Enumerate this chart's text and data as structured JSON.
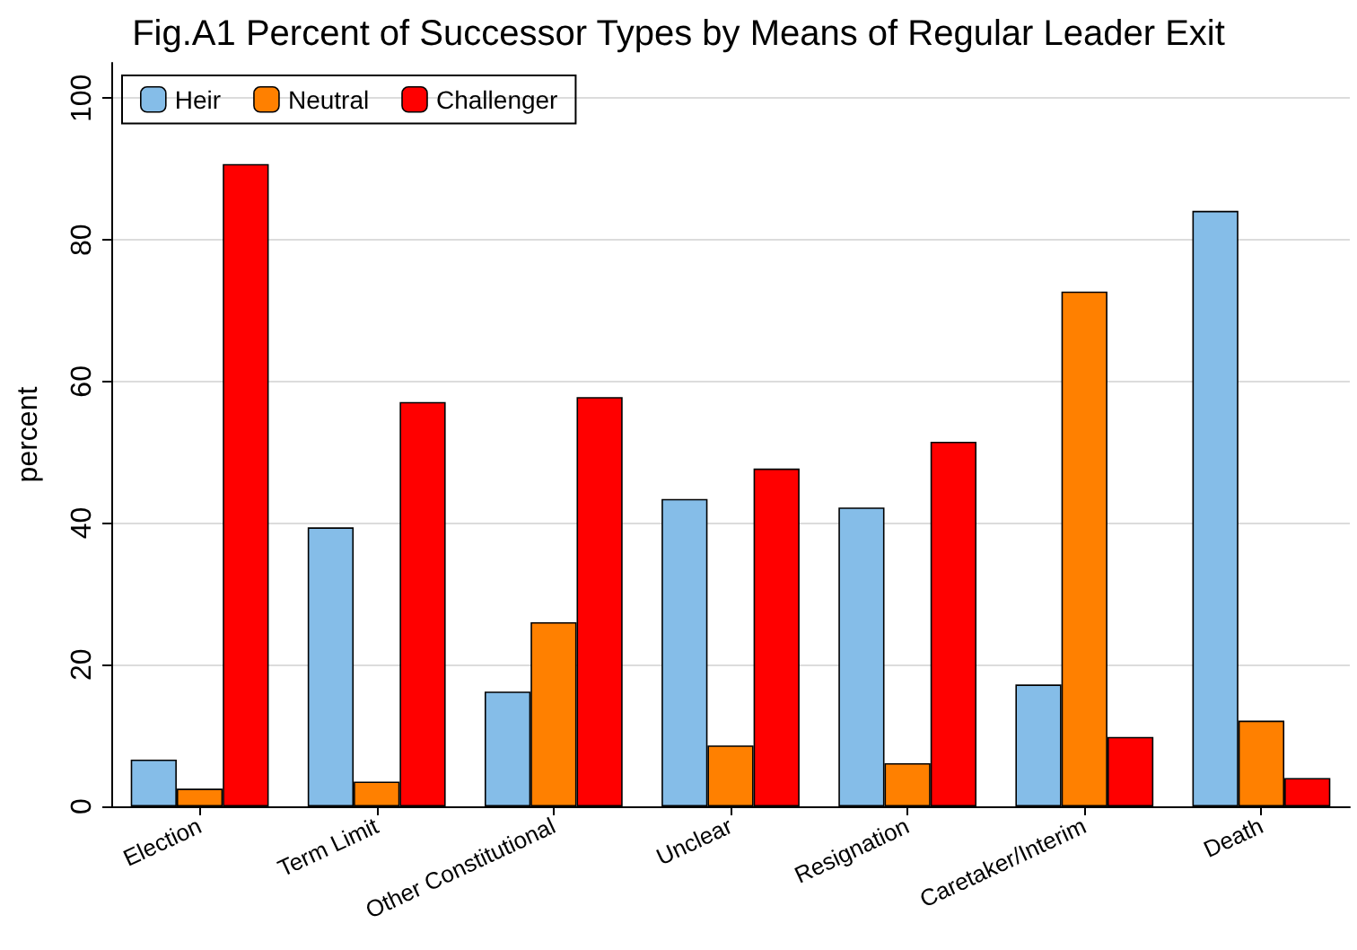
{
  "chart_data": {
    "type": "bar",
    "title": "Fig.A1 Percent of Successor Types by Means of Regular Leader Exit",
    "ylabel": "percent",
    "categories": [
      "Election",
      "Term Limit",
      "Other Constitutional",
      "Unclear",
      "Resignation",
      "Caretaker/Interim",
      "Death"
    ],
    "series": [
      {
        "name": "Heir",
        "color": "#85bde8",
        "values": [
          6.6,
          39.4,
          16.2,
          43.4,
          42.2,
          17.2,
          84.1
        ]
      },
      {
        "name": "Neutral",
        "color": "#ff8000",
        "values": [
          2.5,
          3.5,
          26,
          8.6,
          6.1,
          72.7,
          12.1
        ]
      },
      {
        "name": "Challenger",
        "color": "#ff0000",
        "values": [
          90.7,
          57.1,
          57.8,
          47.7,
          51.5,
          9.8,
          4
        ]
      }
    ],
    "ylim": [
      0,
      105
    ],
    "yticks": [
      0,
      20,
      40,
      60,
      80,
      100
    ],
    "grid": "y",
    "legend": "top left"
  }
}
